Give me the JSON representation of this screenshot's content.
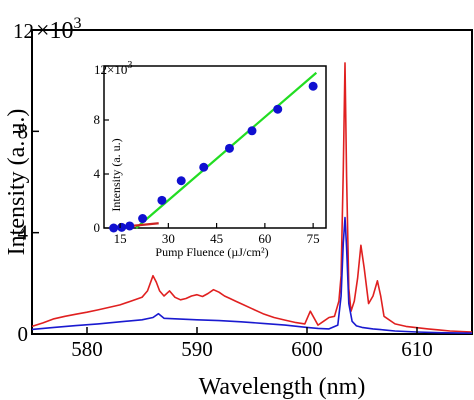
{
  "chart_data": [
    {
      "id": "main",
      "type": "line",
      "xlabel": "Wavelength (nm)",
      "ylabel": "Intensity (a. u.)",
      "xlim": [
        575,
        615
      ],
      "ylim": [
        0,
        12000
      ],
      "xticks": [
        580,
        590,
        600,
        610
      ],
      "xtick_labels": [
        "580",
        "590",
        "600",
        "610"
      ],
      "yticks": [
        0,
        4000,
        8000,
        12000
      ],
      "ytick_labels": [
        "0",
        "4",
        "8",
        "12"
      ],
      "y_multiplier_label": "×10",
      "y_multiplier_exp": "3",
      "grid": false,
      "series": [
        {
          "color": "#e02020",
          "x": [
            575,
            576,
            577,
            578,
            579,
            580,
            581,
            582,
            583,
            584,
            585,
            585.5,
            586,
            586.3,
            586.6,
            587,
            587.5,
            588,
            588.5,
            589,
            589.5,
            590,
            590.5,
            591,
            591.5,
            592,
            592.5,
            593,
            593.5,
            594,
            595,
            596,
            597,
            598,
            599,
            599.8,
            600.3,
            601,
            601.5,
            602,
            602.5,
            602.9,
            603.1,
            603.3,
            603.45,
            603.6,
            603.8,
            604.0,
            604.3,
            604.6,
            604.9,
            605.2,
            605.6,
            606,
            606.4,
            606.7,
            607,
            608,
            609,
            610,
            611,
            612,
            613,
            614,
            615
          ],
          "y": [
            300,
            440,
            600,
            700,
            780,
            860,
            950,
            1050,
            1150,
            1300,
            1450,
            1700,
            2300,
            2050,
            1700,
            1500,
            1700,
            1450,
            1350,
            1400,
            1500,
            1550,
            1480,
            1600,
            1750,
            1650,
            1500,
            1400,
            1300,
            1200,
            1000,
            800,
            650,
            550,
            450,
            400,
            900,
            350,
            500,
            650,
            700,
            1300,
            2300,
            6500,
            10700,
            6200,
            1800,
            900,
            1300,
            2200,
            3500,
            2600,
            1200,
            1500,
            2100,
            1500,
            700,
            400,
            300,
            250,
            200,
            160,
            120,
            100,
            80
          ]
        },
        {
          "color": "#1a1ad0",
          "x": [
            575,
            577,
            579,
            581,
            583,
            585,
            586,
            586.5,
            587,
            588,
            590,
            592,
            594,
            596,
            598,
            600,
            601,
            602,
            602.8,
            603.1,
            603.3,
            603.45,
            603.6,
            603.8,
            604.1,
            604.5,
            605,
            606,
            607,
            608,
            610,
            612,
            615
          ],
          "y": [
            180,
            260,
            330,
            400,
            480,
            560,
            650,
            800,
            620,
            600,
            560,
            530,
            480,
            420,
            350,
            260,
            220,
            200,
            350,
            1500,
            3600,
            4600,
            3400,
            1200,
            500,
            320,
            260,
            200,
            160,
            120,
            80,
            50,
            30
          ]
        }
      ]
    },
    {
      "id": "inset",
      "type": "scatter",
      "xlabel": "Pump Fluence (µJ/cm²)",
      "ylabel": "Intensity (a. u.)",
      "xlim": [
        10,
        79
      ],
      "ylim": [
        0,
        12000
      ],
      "xticks": [
        15,
        30,
        45,
        60,
        75
      ],
      "xtick_labels": [
        "15",
        "30",
        "45",
        "60",
        "75"
      ],
      "yticks": [
        0,
        4000,
        8000,
        12000
      ],
      "ytick_labels": [
        "0",
        "4",
        "8",
        "12"
      ],
      "y_multiplier_label": "×10",
      "y_multiplier_exp": "3",
      "grid": false,
      "points": {
        "color": "#1010d0",
        "x": [
          13,
          15.5,
          18,
          22,
          28,
          34,
          41,
          49,
          56,
          64,
          75
        ],
        "y": [
          0,
          50,
          150,
          700,
          2050,
          3500,
          4500,
          5900,
          7200,
          8800,
          10500
        ]
      },
      "fits": [
        {
          "color": "#22dd22",
          "x": [
            20,
            76
          ],
          "y": [
            0,
            11500
          ]
        },
        {
          "color": "#cc2222",
          "x": [
            12,
            27
          ],
          "y": [
            0,
            350
          ]
        }
      ]
    }
  ]
}
